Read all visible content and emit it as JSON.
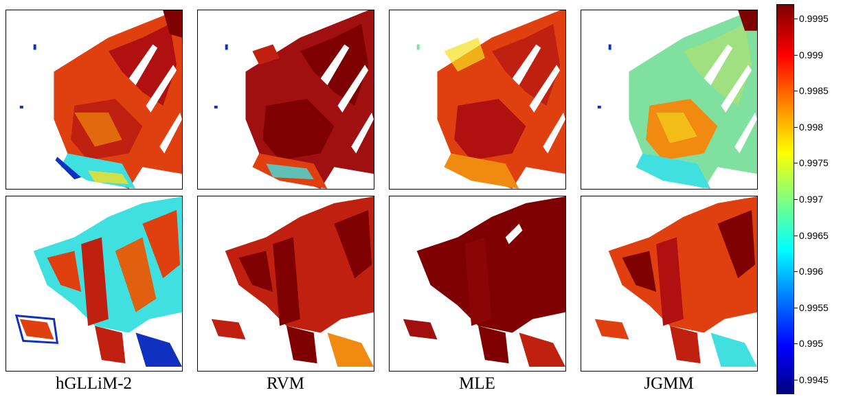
{
  "captions": [
    "hGLLiM-2",
    "RVM",
    "MLE",
    "JGMM"
  ],
  "colorbar": {
    "ticks": [
      "0.9995",
      "0.999",
      "0.9985",
      "0.998",
      "0.9975",
      "0.997",
      "0.9965",
      "0.996",
      "0.9955",
      "0.995",
      "0.9945"
    ]
  },
  "colors": {
    "dark_red": "#7f0000",
    "red": "#e0140a",
    "orange": "#f08a10",
    "yellow": "#f5e020",
    "cyan": "#40e0e0",
    "blue": "#1030c0",
    "green": "#80e0a0"
  }
}
